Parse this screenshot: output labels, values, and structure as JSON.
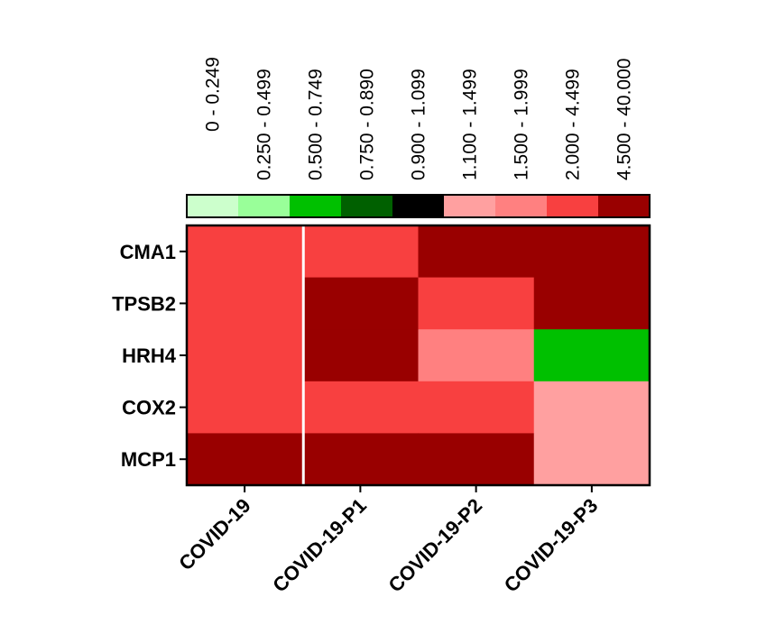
{
  "chart_data": {
    "type": "heatmap",
    "rows": [
      "CMA1",
      "TPSB2",
      "HRH4",
      "COX2",
      "MCP1"
    ],
    "columns": [
      "COVID-19",
      "COVID-19-P1",
      "COVID-19-P2",
      "COVID-19-P3"
    ],
    "color_scale": {
      "bins": [
        {
          "label": "0 - 0.249",
          "color": "#ccffcc"
        },
        {
          "label": "0.250 - 0.499",
          "color": "#99ff99"
        },
        {
          "label": "0.500 - 0.749",
          "color": "#00c000"
        },
        {
          "label": "0.750 - 0.890",
          "color": "#006000"
        },
        {
          "label": "0.900 - 1.099",
          "color": "#000000"
        },
        {
          "label": "1.100 - 1.499",
          "color": "#ffa0a0"
        },
        {
          "label": "1.500 - 1.999",
          "color": "#ff8080"
        },
        {
          "label": "2.000 - 4.499",
          "color": "#f84040"
        },
        {
          "label": "4.500 - 40.000",
          "color": "#990000"
        }
      ],
      "placement": "top"
    },
    "cells": [
      [
        7,
        7,
        8,
        8
      ],
      [
        7,
        8,
        7,
        8
      ],
      [
        7,
        8,
        6,
        2
      ],
      [
        7,
        7,
        7,
        5
      ],
      [
        8,
        8,
        8,
        5
      ]
    ],
    "legend_placement": "top"
  }
}
